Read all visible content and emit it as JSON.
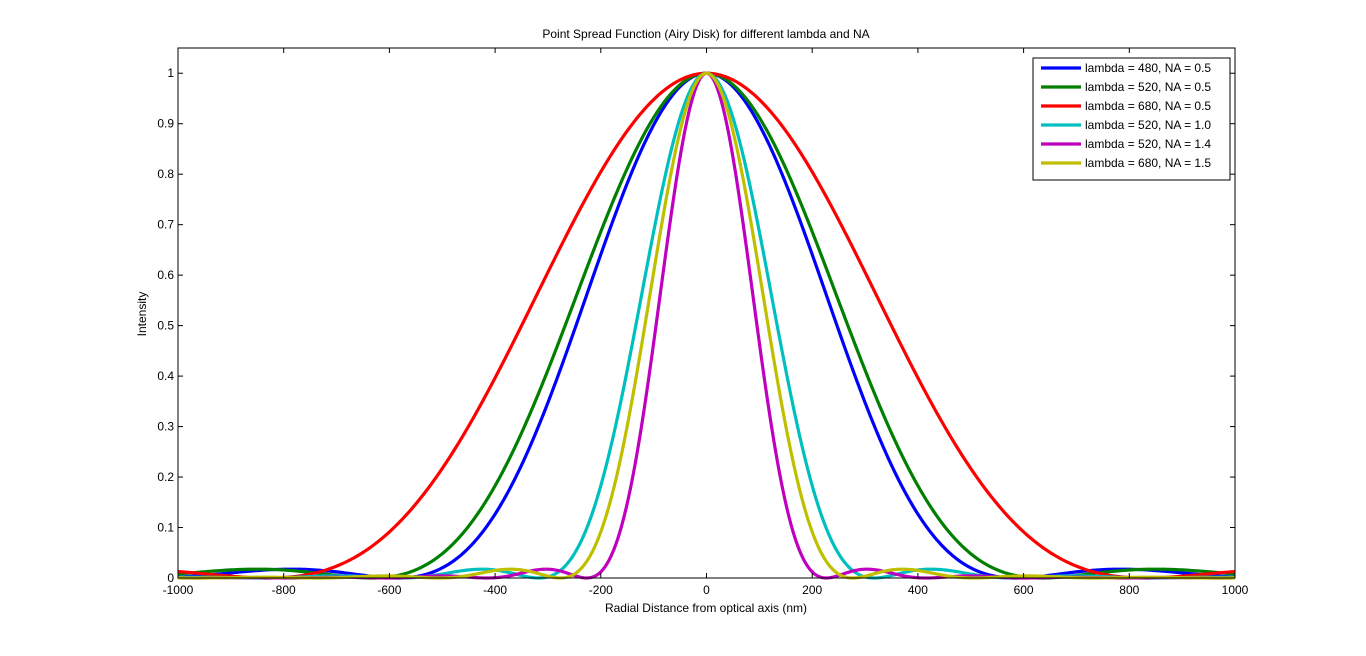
{
  "chart_data": {
    "type": "line",
    "title": "Point Spread Function (Airy Disk) for different lambda and NA",
    "xlabel": "Radial Distance from optical axis (nm)",
    "ylabel": "Intensity",
    "xlim": [
      -1000,
      1000
    ],
    "ylim": [
      0,
      1.05
    ],
    "xticks": [
      -1000,
      -800,
      -600,
      -400,
      -200,
      0,
      200,
      400,
      600,
      800,
      1000
    ],
    "yticks": [
      0,
      0.1,
      0.2,
      0.3,
      0.4,
      0.5,
      0.6,
      0.7,
      0.8,
      0.9,
      1
    ],
    "ytick_labels": [
      "0",
      "0.1",
      "0.2",
      "0.3",
      "0.4",
      "0.5",
      "0.6",
      "0.7",
      "0.8",
      "0.9",
      "1"
    ],
    "grid": false,
    "legend_position": "top-right",
    "series": [
      {
        "name": "lambda = 480, NA = 0.5",
        "lambda": 480,
        "NA": 0.5,
        "color": "#0000ff"
      },
      {
        "name": "lambda = 520, NA = 0.5",
        "lambda": 520,
        "NA": 0.5,
        "color": "#007f00"
      },
      {
        "name": "lambda = 680, NA = 0.5",
        "lambda": 680,
        "NA": 0.5,
        "color": "#ff0000"
      },
      {
        "name": "lambda = 520, NA = 1.0",
        "lambda": 520,
        "NA": 1.0,
        "color": "#00bfbf"
      },
      {
        "name": "lambda = 520, NA = 1.4",
        "lambda": 520,
        "NA": 1.4,
        "color": "#bf00bf"
      },
      {
        "name": "lambda = 680, NA = 1.5",
        "lambda": 680,
        "NA": 1.5,
        "color": "#bfbf00"
      }
    ]
  }
}
